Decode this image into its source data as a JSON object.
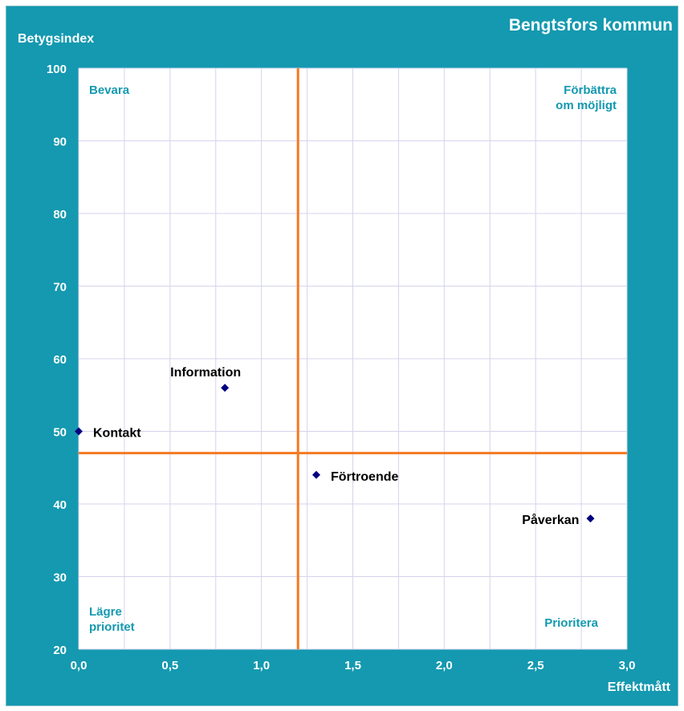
{
  "chart_data": {
    "type": "scatter",
    "title": "Bengtsfors kommun",
    "xlabel": "Effektmått",
    "ylabel": "Betygsindex",
    "xlim": [
      0,
      3
    ],
    "ylim": [
      20,
      100
    ],
    "x_ticks": [
      0,
      0.5,
      1,
      1.5,
      2,
      2.5,
      3
    ],
    "x_tick_labels": [
      "0,0",
      "0,5",
      "1,0",
      "1,5",
      "2,0",
      "2,5",
      "3,0"
    ],
    "y_ticks": [
      20,
      30,
      40,
      50,
      60,
      70,
      80,
      90,
      100
    ],
    "y_tick_labels": [
      "20",
      "30",
      "40",
      "50",
      "60",
      "70",
      "80",
      "90",
      "100"
    ],
    "x_minor_gridlines": [
      0.25,
      0.75,
      1.25,
      1.75,
      2.25,
      2.75
    ],
    "grid": true,
    "reference_lines": {
      "x": 1.2,
      "y": 47
    },
    "points": [
      {
        "label": "Information",
        "x": 0.8,
        "y": 56
      },
      {
        "label": "Kontakt",
        "x": 0.0,
        "y": 50
      },
      {
        "label": "Förtroende",
        "x": 1.3,
        "y": 44
      },
      {
        "label": "Påverkan",
        "x": 2.8,
        "y": 38
      }
    ],
    "quadrant_labels": {
      "top_left": [
        "Bevara"
      ],
      "top_right": [
        "Förbättra",
        "om möjligt"
      ],
      "bottom_left": [
        "Lägre",
        "prioritet"
      ],
      "bottom_right": [
        "Prioritera"
      ]
    }
  },
  "colors": {
    "frame": "#1499B0",
    "plot_background": "#FFFFFF",
    "gridline": "#D4D4EC",
    "reference_line": "#F47920",
    "marker": "#000080",
    "quadrant_text": "#1499B0",
    "axis_text": "#FFFFFF",
    "point_label": "#000000"
  }
}
